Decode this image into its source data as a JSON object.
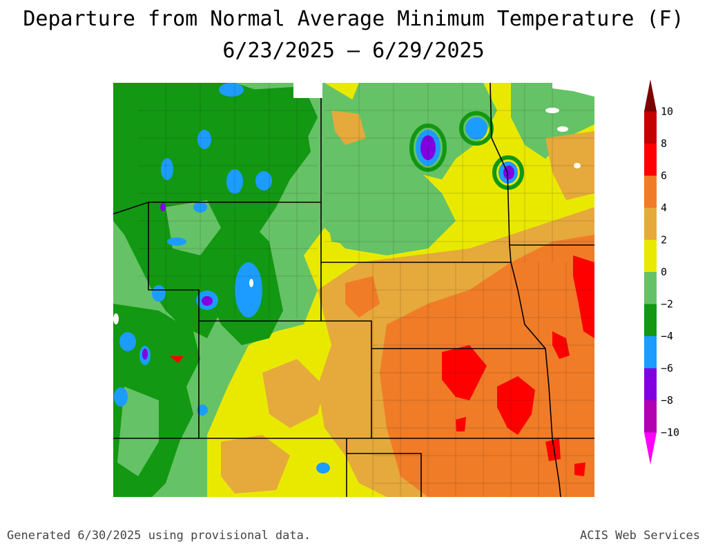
{
  "title": "Departure from Normal Average Minimum Temperature (F)",
  "date_range": "6/23/2025 – 6/29/2025",
  "footer": {
    "generated": "Generated 6/30/2025 using provisional data.",
    "source": "ACIS Web Services"
  },
  "legend": {
    "bins": [
      {
        "label": "10",
        "color": "#7a0000"
      },
      {
        "label": "8",
        "color": "#c40000"
      },
      {
        "label": "6",
        "color": "#ff0000"
      },
      {
        "label": "4",
        "color": "#f07c28"
      },
      {
        "label": "2",
        "color": "#e6a93c"
      },
      {
        "label": "0",
        "color": "#e9e900"
      },
      {
        "label": "−2",
        "color": "#66c266"
      },
      {
        "label": "−4",
        "color": "#129812"
      },
      {
        "label": "−6",
        "color": "#1c9cff"
      },
      {
        "label": "−8",
        "color": "#8000e0"
      },
      {
        "label": "−10",
        "color": "#b000b0"
      },
      {
        "label": "",
        "color": "#ff00ff"
      }
    ]
  },
  "colors": {
    "plus10": "#7a0000",
    "plus8": "#c40000",
    "plus6": "#ff0000",
    "plus4": "#f07c28",
    "plus2": "#e6a93c",
    "zero": "#e9e900",
    "minus2": "#66c266",
    "minus4": "#129812",
    "minus6": "#1c9cff",
    "minus8": "#8000e0",
    "minus10": "#b000b0",
    "minus12": "#ff00ff"
  }
}
